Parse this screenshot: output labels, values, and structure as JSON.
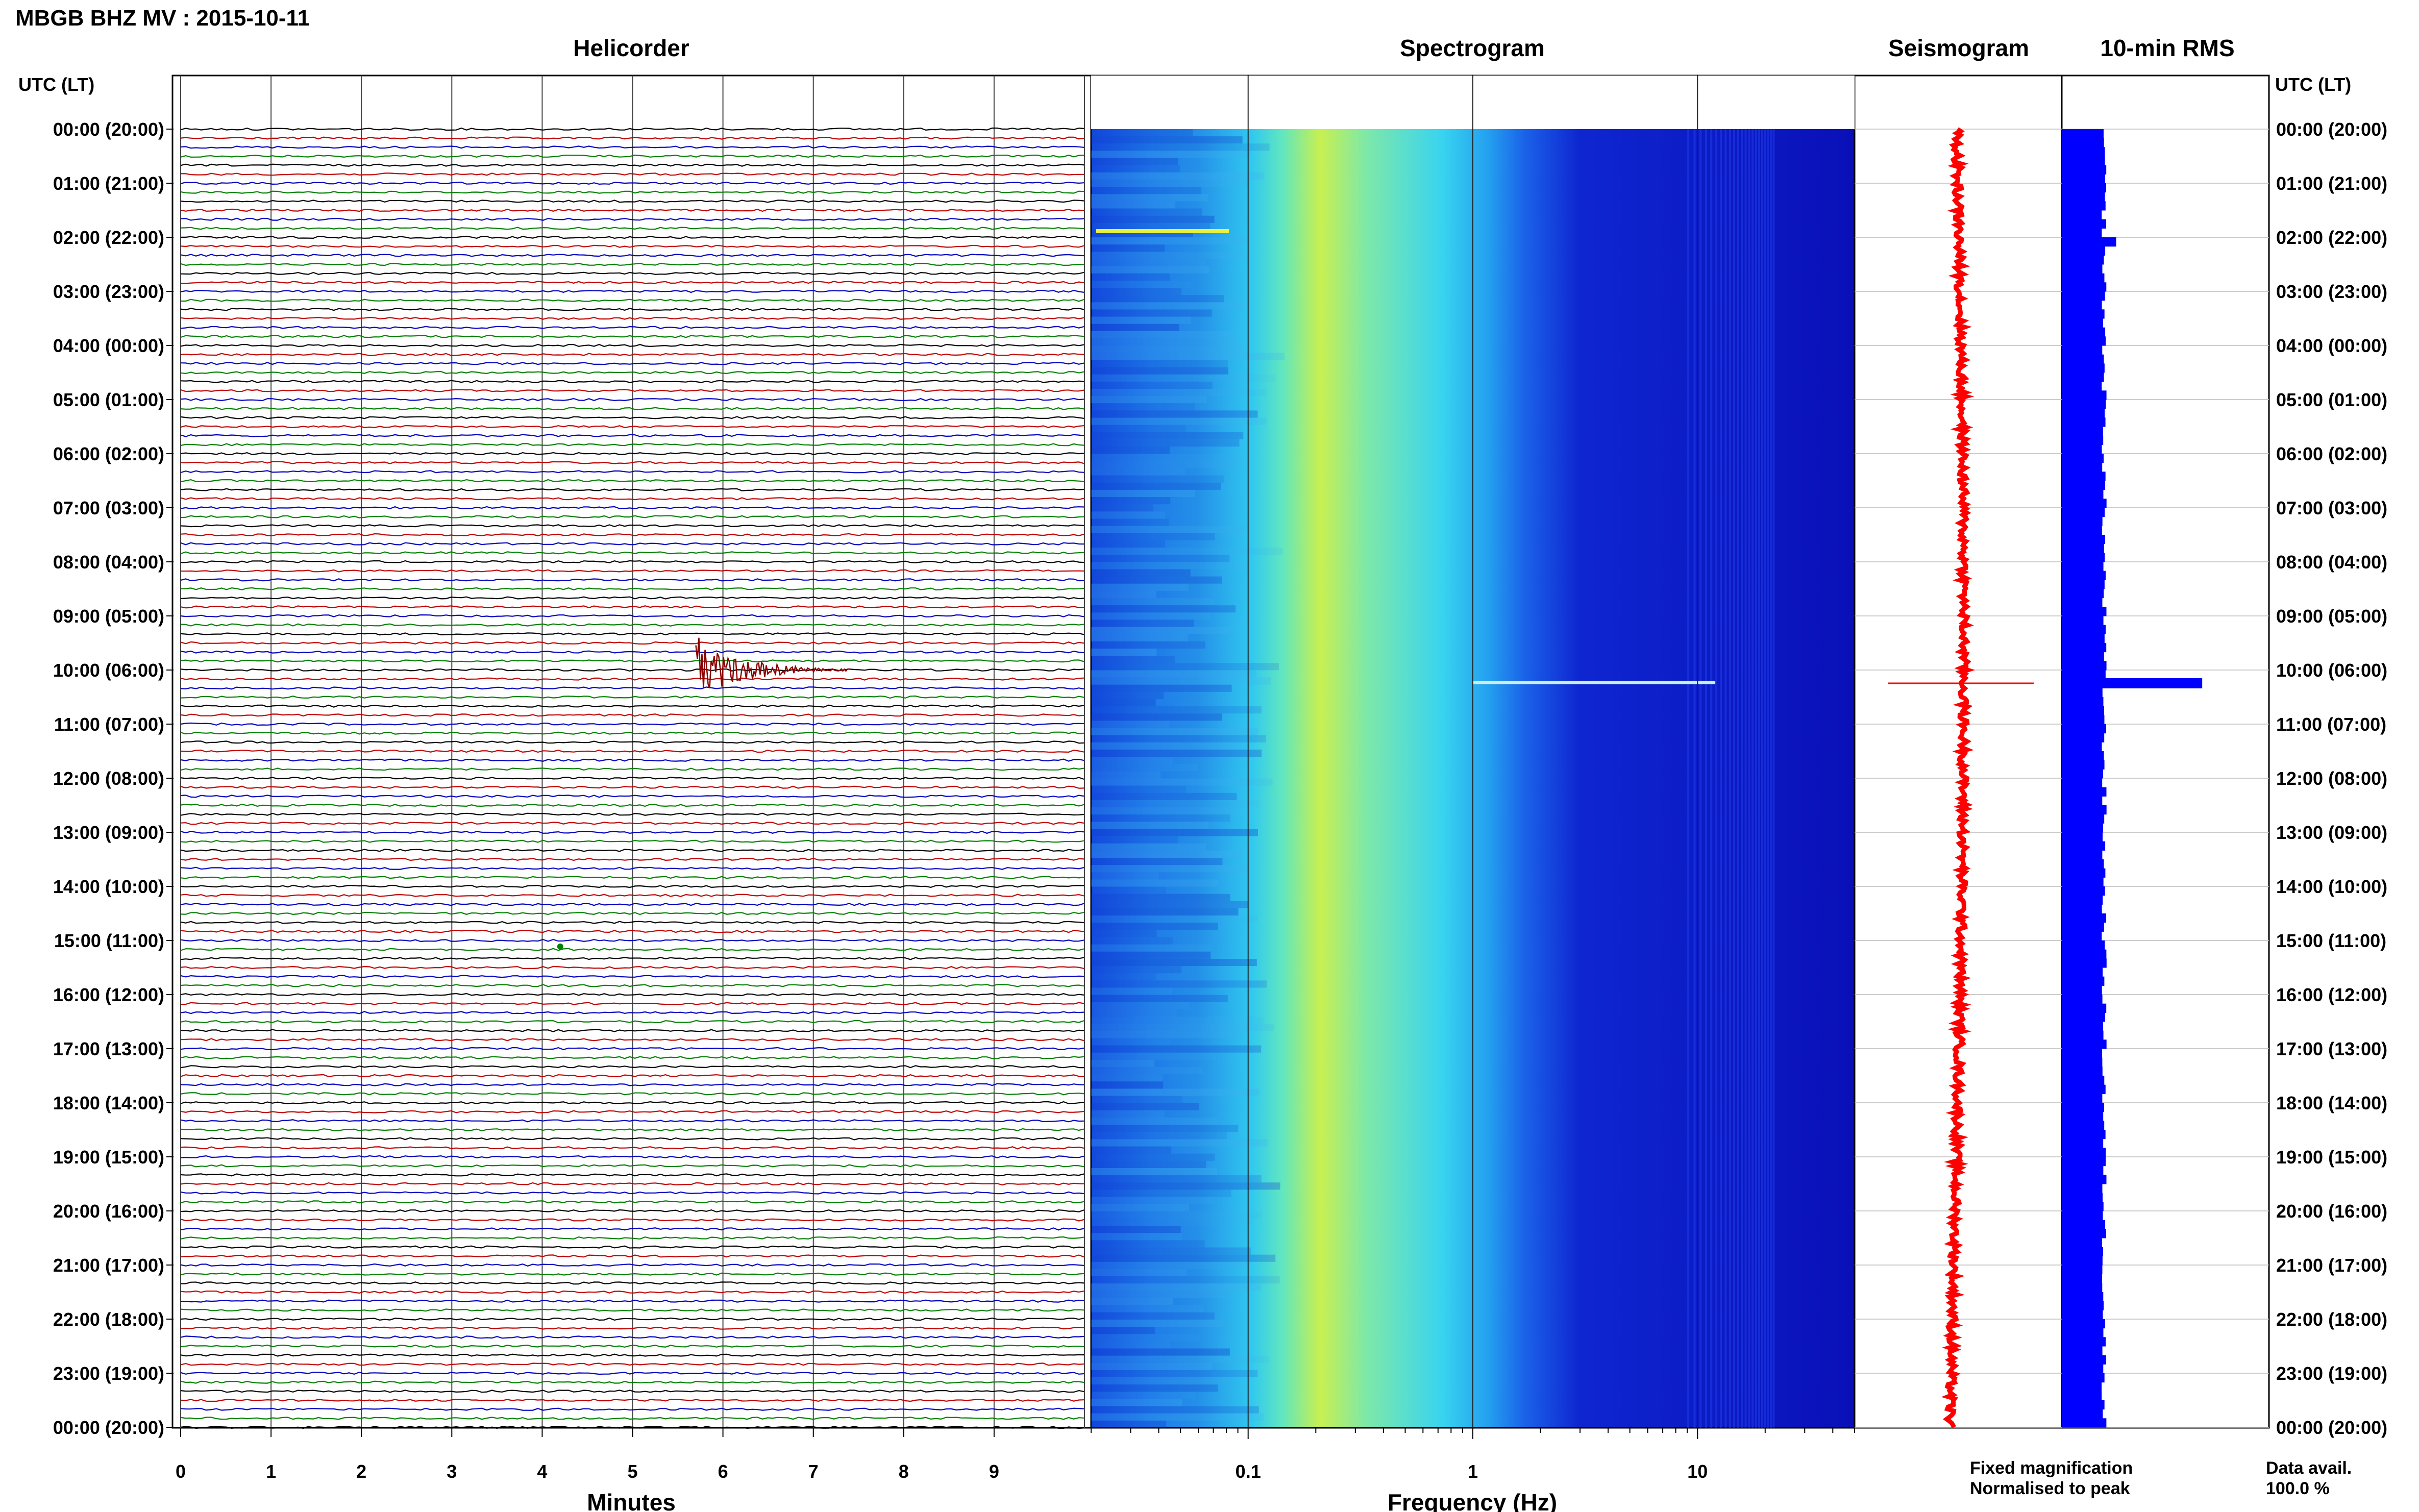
{
  "header": {
    "title": "MBGB BHZ MV : 2015-10-11"
  },
  "panels": {
    "helicorder_title": "Helicorder",
    "spectrogram_title": "Spectrogram",
    "seismogram_title": "Seismogram",
    "rms_title": "10-min RMS"
  },
  "axis": {
    "time_header_left": "UTC (LT)",
    "time_header_right": "UTC (LT)",
    "minutes_label": "Minutes",
    "frequency_label": "Frequency (Hz)"
  },
  "legend": {
    "fixed": "Fixed magnification",
    "normalised": "Normalised to peak",
    "fixed_color": "#1a1aff",
    "normalised_color": "#ff0000",
    "data_avail_label": "Data avail.",
    "data_avail_value": "100.0 %"
  },
  "chart_data": [
    {
      "type": "line",
      "name": "helicorder",
      "x_ticks": [
        "0",
        "1",
        "2",
        "3",
        "4",
        "5",
        "6",
        "7",
        "8",
        "9"
      ],
      "xlim": [
        0,
        10
      ],
      "rows_per_hour": 6,
      "row_colors": [
        "#000000",
        "#c00000",
        "#0000c0",
        "#008000"
      ],
      "event": {
        "hour": 10,
        "row": 0,
        "start_min": 5.7,
        "end_min": 7.4,
        "color": "#8b0000"
      },
      "small_event": {
        "hour": 15,
        "row": 0,
        "minute": 4.2,
        "color": "#008000"
      }
    },
    {
      "type": "heatmap",
      "name": "spectrogram",
      "x_scale": "log",
      "x_tick_labels": [
        "0.1",
        "1",
        "10"
      ],
      "xlim": [
        0.02,
        50
      ],
      "colormap": [
        "#0000a0",
        "#0a1ee0",
        "#1e6ef0",
        "#28c8f0",
        "#5ae6c8",
        "#c8f050"
      ]
    },
    {
      "type": "line",
      "name": "seismogram",
      "trace_color": "#ff0000",
      "spike_hour": 10
    },
    {
      "type": "bar",
      "name": "10-min RMS",
      "bar_color": "#0000ff",
      "typical_value": 1.0,
      "peak": {
        "hour": 10,
        "value": 3.2
      },
      "note": ""
    },
    {
      "type": "table",
      "name": "time_axis",
      "labels": [
        "00:00 (20:00)",
        "01:00 (21:00)",
        "02:00 (22:00)",
        "03:00 (23:00)",
        "04:00 (00:00)",
        "05:00 (01:00)",
        "06:00 (02:00)",
        "07:00 (03:00)",
        "08:00 (04:00)",
        "09:00 (05:00)",
        "10:00 (06:00)",
        "11:00 (07:00)",
        "12:00 (08:00)",
        "13:00 (09:00)",
        "14:00 (10:00)",
        "15:00 (11:00)",
        "16:00 (12:00)",
        "17:00 (13:00)",
        "18:00 (14:00)",
        "19:00 (15:00)",
        "20:00 (16:00)",
        "21:00 (17:00)",
        "22:00 (18:00)",
        "23:00 (19:00)",
        "00:00 (20:00)"
      ]
    }
  ]
}
